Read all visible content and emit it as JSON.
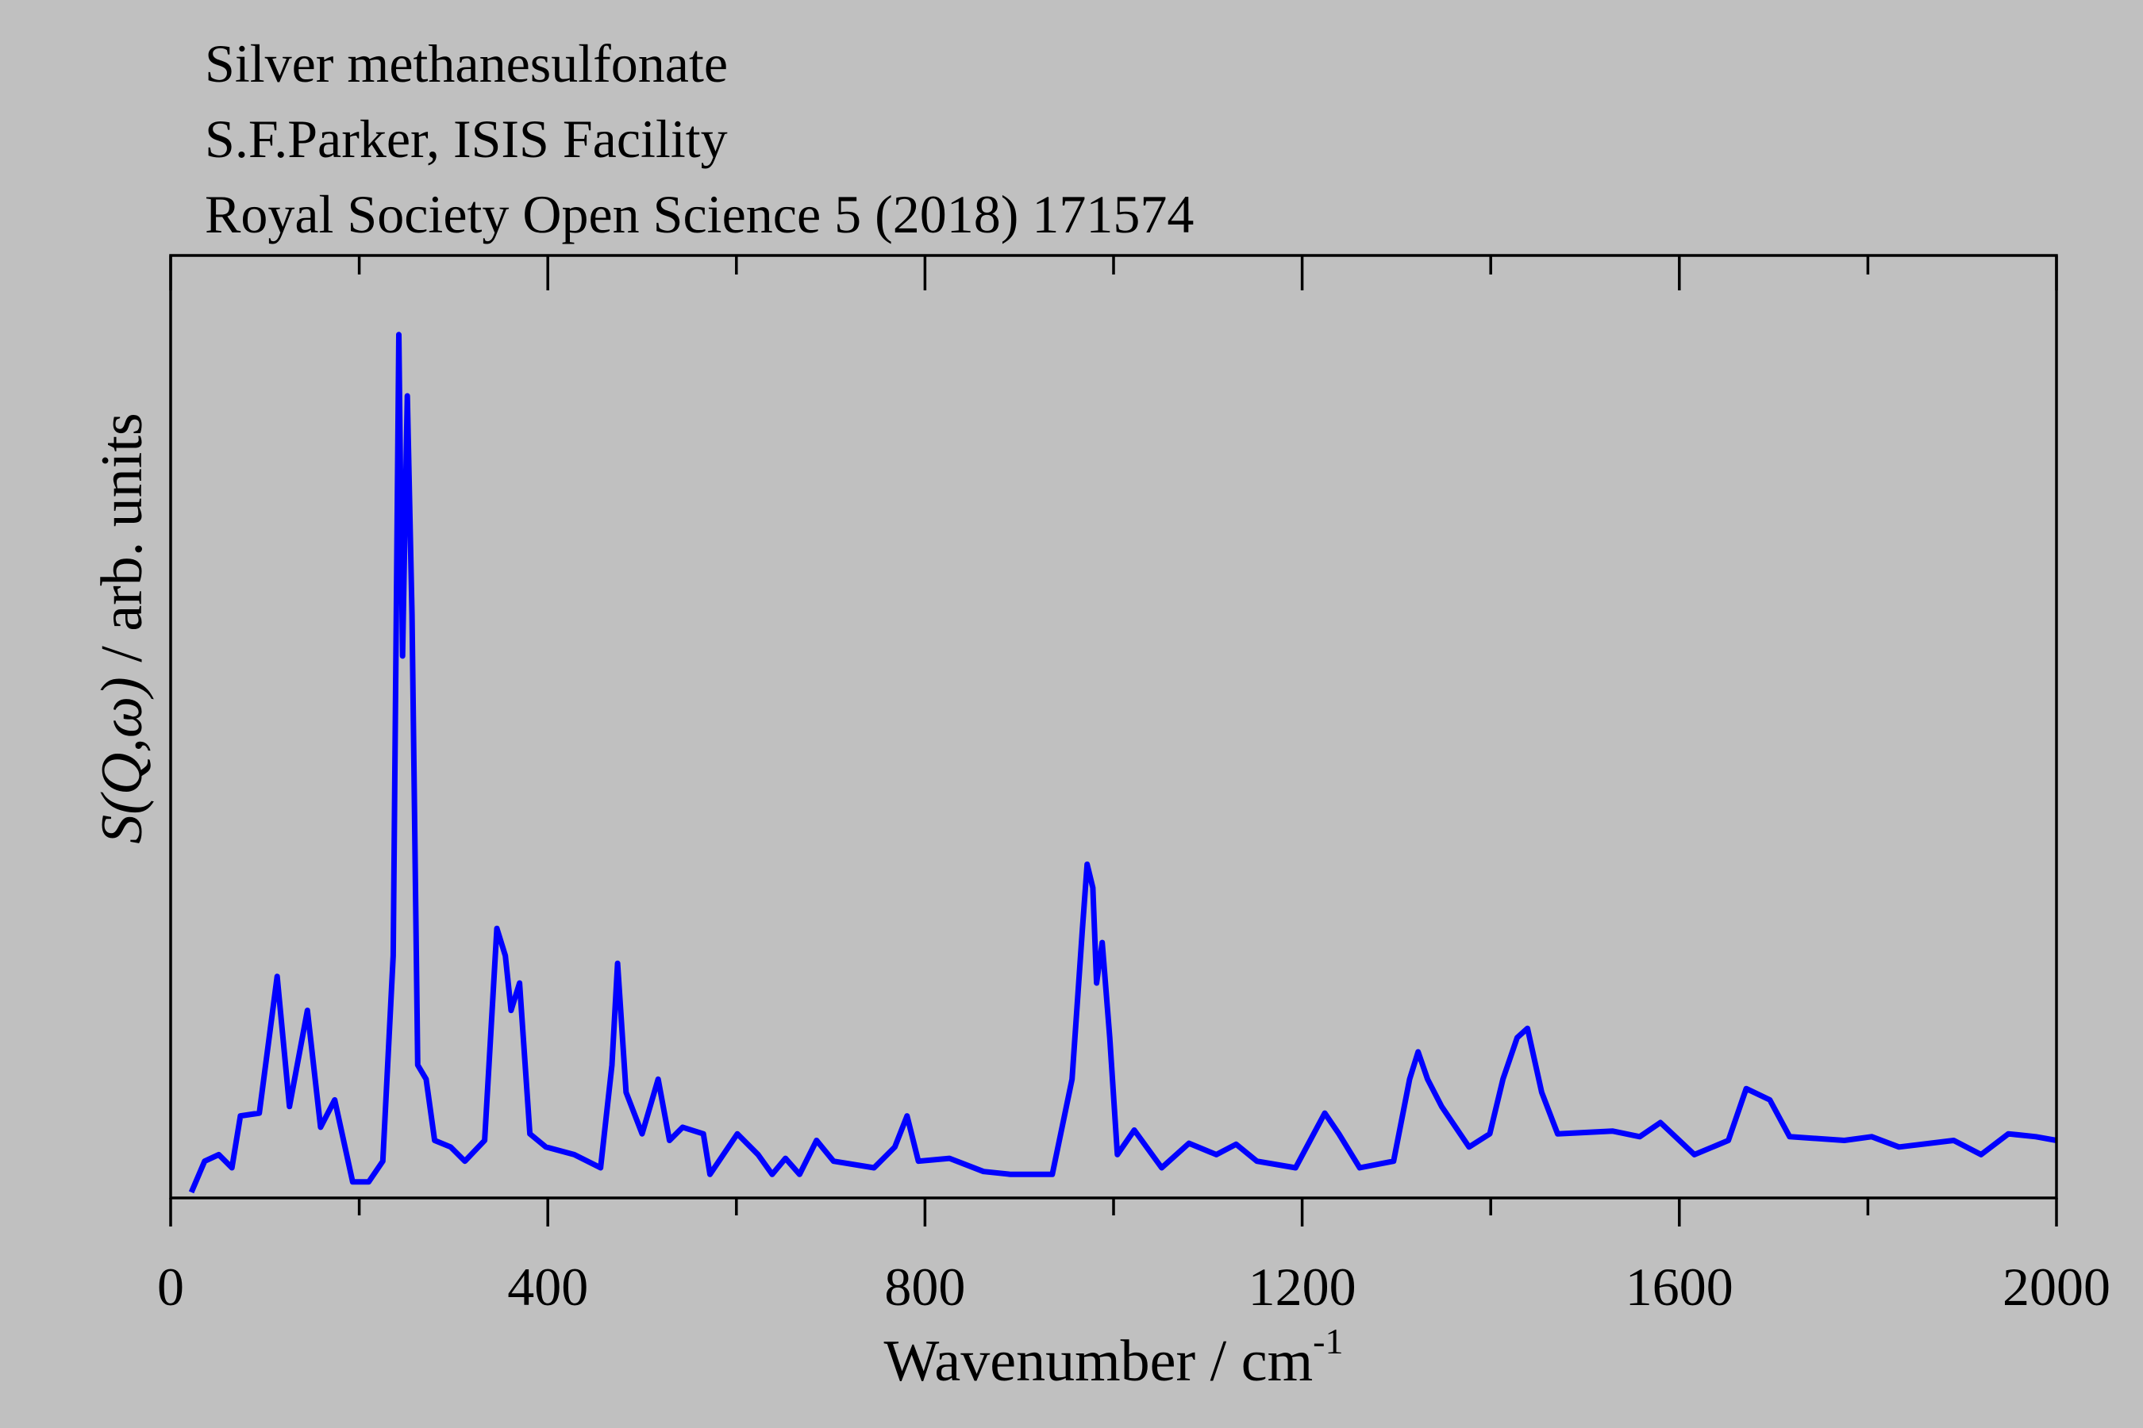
{
  "chart_data": {
    "type": "line",
    "title_lines": [
      "Silver methanesulfonate",
      "S.F.Parker, ISIS Facility",
      "Royal Society Open Science 5 (2018) 171574"
    ],
    "xlabel": {
      "text": "Wavenumber / cm",
      "superscript": "-1"
    },
    "ylabel": {
      "italic": "S(Q,ω)",
      "text": " / arb. units"
    },
    "xlim": [
      0,
      2000
    ],
    "ylim": [
      0,
      100
    ],
    "xticks": [
      0,
      400,
      800,
      1200,
      1600,
      2000
    ],
    "xminor_ticks": [
      200,
      600,
      1000,
      1400,
      1800
    ],
    "series": [
      {
        "color": "#0000ff",
        "x": [
          22,
          36,
          51,
          65,
          74,
          94,
          113,
          126,
          145,
          159,
          174,
          193,
          210,
          225,
          236,
          242,
          246,
          251,
          256,
          262,
          271,
          280,
          297,
          312,
          333,
          346,
          355,
          361,
          370,
          381,
          398,
          428,
          456,
          468,
          474,
          483,
          500,
          517,
          529,
          543,
          565,
          572,
          601,
          623,
          638,
          652,
          667,
          685,
          703,
          746,
          768,
          781,
          793,
          826,
          862,
          891,
          935,
          956,
          967,
          972,
          978,
          982,
          988,
          996,
          1004,
          1022,
          1051,
          1080,
          1109,
          1130,
          1152,
          1193,
          1224,
          1239,
          1261,
          1297,
          1314,
          1323,
          1333,
          1348,
          1377,
          1399,
          1413,
          1428,
          1439,
          1454,
          1471,
          1529,
          1558,
          1580,
          1616,
          1652,
          1671,
          1696,
          1717,
          1775,
          1804,
          1833,
          1891,
          1920,
          1949,
          1978,
          2000
        ],
        "values": [
          0.6,
          3.9,
          4.6,
          3.2,
          8.7,
          9.0,
          23.5,
          9.7,
          19.9,
          7.5,
          10.4,
          1.7,
          1.7,
          3.9,
          25.7,
          91.6,
          57.5,
          85.1,
          61.9,
          14.1,
          12.6,
          6.1,
          5.4,
          3.9,
          6.1,
          28.6,
          25.7,
          19.9,
          22.8,
          6.8,
          5.4,
          4.6,
          3.2,
          14.1,
          24.9,
          11.2,
          6.8,
          12.6,
          6.1,
          7.5,
          6.8,
          2.5,
          6.8,
          4.6,
          2.5,
          4.2,
          2.5,
          6.1,
          3.9,
          3.2,
          5.4,
          8.7,
          3.9,
          4.2,
          2.8,
          2.5,
          2.5,
          12.6,
          28.6,
          35.4,
          32.9,
          22.8,
          27.1,
          17.0,
          4.6,
          7.2,
          3.2,
          5.8,
          4.6,
          5.7,
          3.9,
          3.2,
          9.0,
          6.8,
          3.2,
          3.9,
          12.6,
          15.5,
          12.6,
          9.7,
          5.4,
          6.8,
          12.6,
          17.0,
          18.0,
          11.2,
          6.8,
          7.1,
          6.5,
          8.0,
          4.6,
          6.1,
          11.6,
          10.4,
          6.5,
          6.1,
          6.5,
          5.4,
          6.1,
          4.6,
          6.8,
          6.5,
          6.1
        ]
      }
    ]
  }
}
